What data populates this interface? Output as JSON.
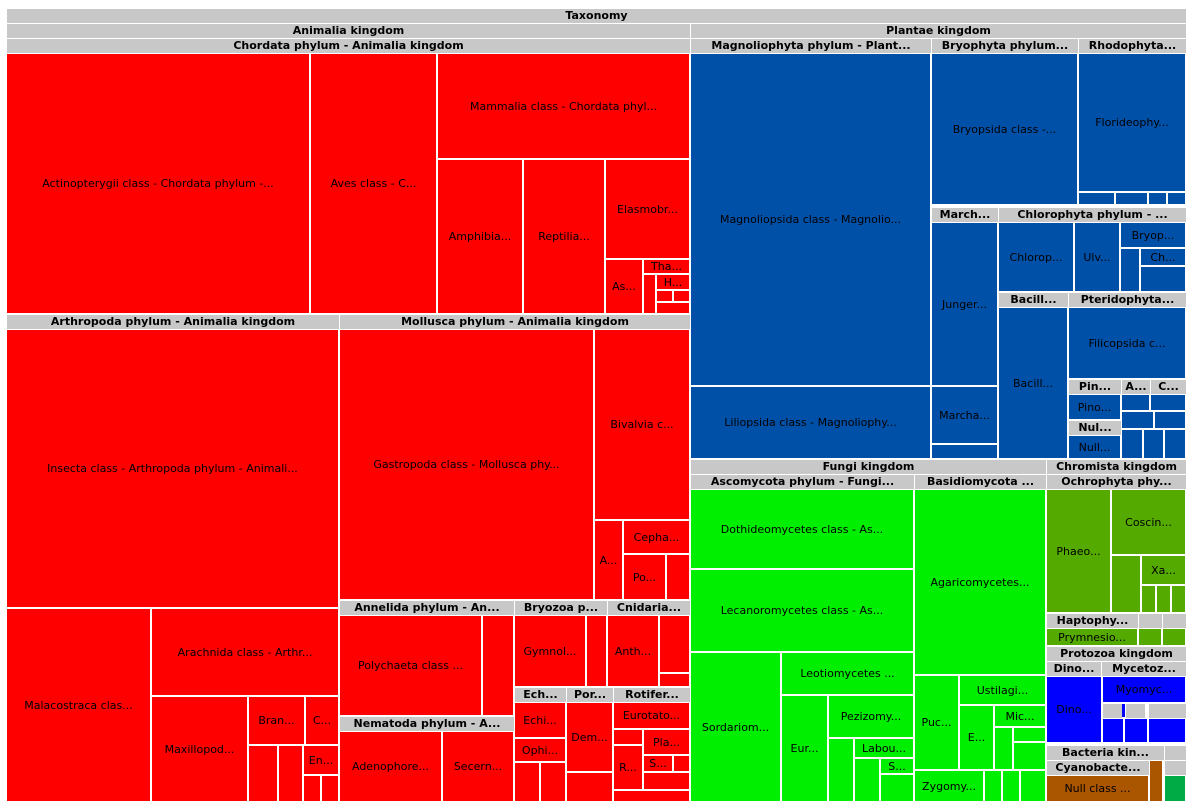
{
  "title": "Taxonomy",
  "colors": {
    "header": "#c8c8c8",
    "animalia": "#ff0000",
    "plantae": "#0050a8",
    "fungi": "#00ee00",
    "chromista": "#55aa00",
    "protozoa": "#0000ff",
    "bacteria": "#aa5500",
    "bacteria_alt": "#00aa44"
  },
  "chart_data": {
    "type": "treemap",
    "title": "Taxonomy",
    "headers": [
      "Animalia kingdom",
      "Chordata phylum - Animalia kingdom",
      "Arthropoda phylum - Animalia kingdom",
      "Mollusca phylum - Animalia kingdom",
      "Annelida phylum - An...",
      "Bryozoa p...",
      "Cnidaria...",
      "Nematoda phylum - A...",
      "Ech...",
      "Por...",
      "Rotifer...",
      "Plantae kingdom",
      "Magnoliophyta phylum - Plant...",
      "Bryophyta phylum...",
      "Rhodophyta...",
      "March...",
      "Chlorophyta phylum - ...",
      "Bacill...",
      "Pteridophyta...",
      "Pin...",
      "A...",
      "C...",
      "Nul...",
      "Fungi kingdom",
      "Ascomycota phylum - Fungi...",
      "Basidiomycota ...",
      "Chromista kingdom",
      "Ochrophyta phy...",
      "Haptophy...",
      "Protozoa kingdom",
      "Dino...",
      "Mycetoz...",
      "Bacteria kin...",
      "Cyanobacte..."
    ],
    "cells": [
      "Actinopterygii class - Chordata phylum -...",
      "Aves class - C...",
      "Mammalia class - Chordata phyl...",
      "Amphibia...",
      "Reptilia...",
      "Elasmobr...",
      "As...",
      "Tha...",
      "H...",
      "Insecta class - Arthropoda phylum - Animali...",
      "Malacostraca clas...",
      "Arachnida class - Arthr...",
      "Maxillopod...",
      "Bran...",
      "C...",
      "En...",
      "Gastropoda class - Mollusca phy...",
      "Bivalvia c...",
      "A...",
      "Cepha...",
      "Po...",
      "Polychaeta class ...",
      "Gymnol...",
      "Anth...",
      "Adenophore...",
      "Secern...",
      "Echi...",
      "Ophi...",
      "Dem...",
      "Eurotato...",
      "Pla...",
      "S...",
      "R...",
      "Magnoliopsida class - Magnolio...",
      "Liliopsida class - Magnoliophy...",
      "Bryopsida class -...",
      "Florideophy...",
      "Junger...",
      "Marcha...",
      "Chlorop...",
      "Ulv...",
      "Bryop...",
      "Ch...",
      "Bacill...",
      "Filicopsida c...",
      "Pino...",
      "Null...",
      "Dothideomycetes class - As...",
      "Lecanoromycetes class - As...",
      "Sordariom...",
      "Leotiomycetes ...",
      "Eur...",
      "Pezizomy...",
      "Labou...",
      "Agaricomycetes...",
      "Ustilagi...",
      "Puc...",
      "E...",
      "Mic...",
      "Zygomy...",
      "Phaeo...",
      "Coscin...",
      "Xa...",
      "Prymnesio...",
      "Dino...",
      "Myomyc...",
      "Null class ..."
    ]
  }
}
